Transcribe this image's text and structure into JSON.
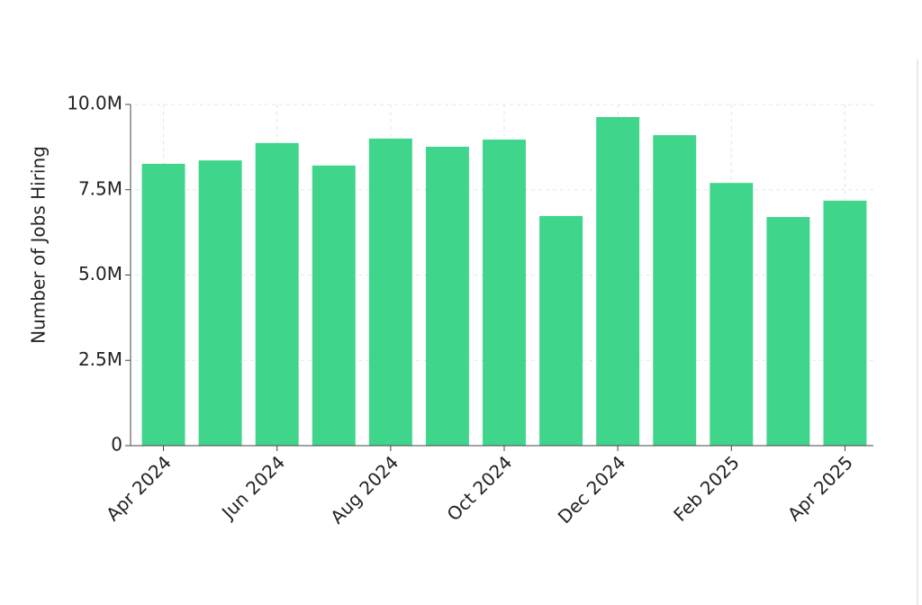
{
  "chart_data": {
    "type": "bar",
    "y_label": "Number of Jobs Hiring",
    "categories": [
      "Apr 2024",
      null,
      "Jun 2024",
      null,
      "Aug 2024",
      null,
      "Oct 2024",
      null,
      "Dec 2024",
      null,
      "Feb 2025",
      null,
      "Apr 2025"
    ],
    "values": [
      8260000,
      8360000,
      8870000,
      8210000,
      9000000,
      8760000,
      8970000,
      6730000,
      9630000,
      9100000,
      7700000,
      6700000,
      7180000
    ],
    "color": "#3fd68c",
    "ylim": [
      0,
      10000000
    ],
    "yticks": [
      0,
      {
        "value": 2500000,
        "label": "2.5M"
      },
      {
        "value": 5000000,
        "label": "5.0M"
      },
      {
        "value": 7500000,
        "label": "7.5M"
      },
      {
        "value": 10000000,
        "label": "10.0M"
      }
    ],
    "grid": true
  }
}
